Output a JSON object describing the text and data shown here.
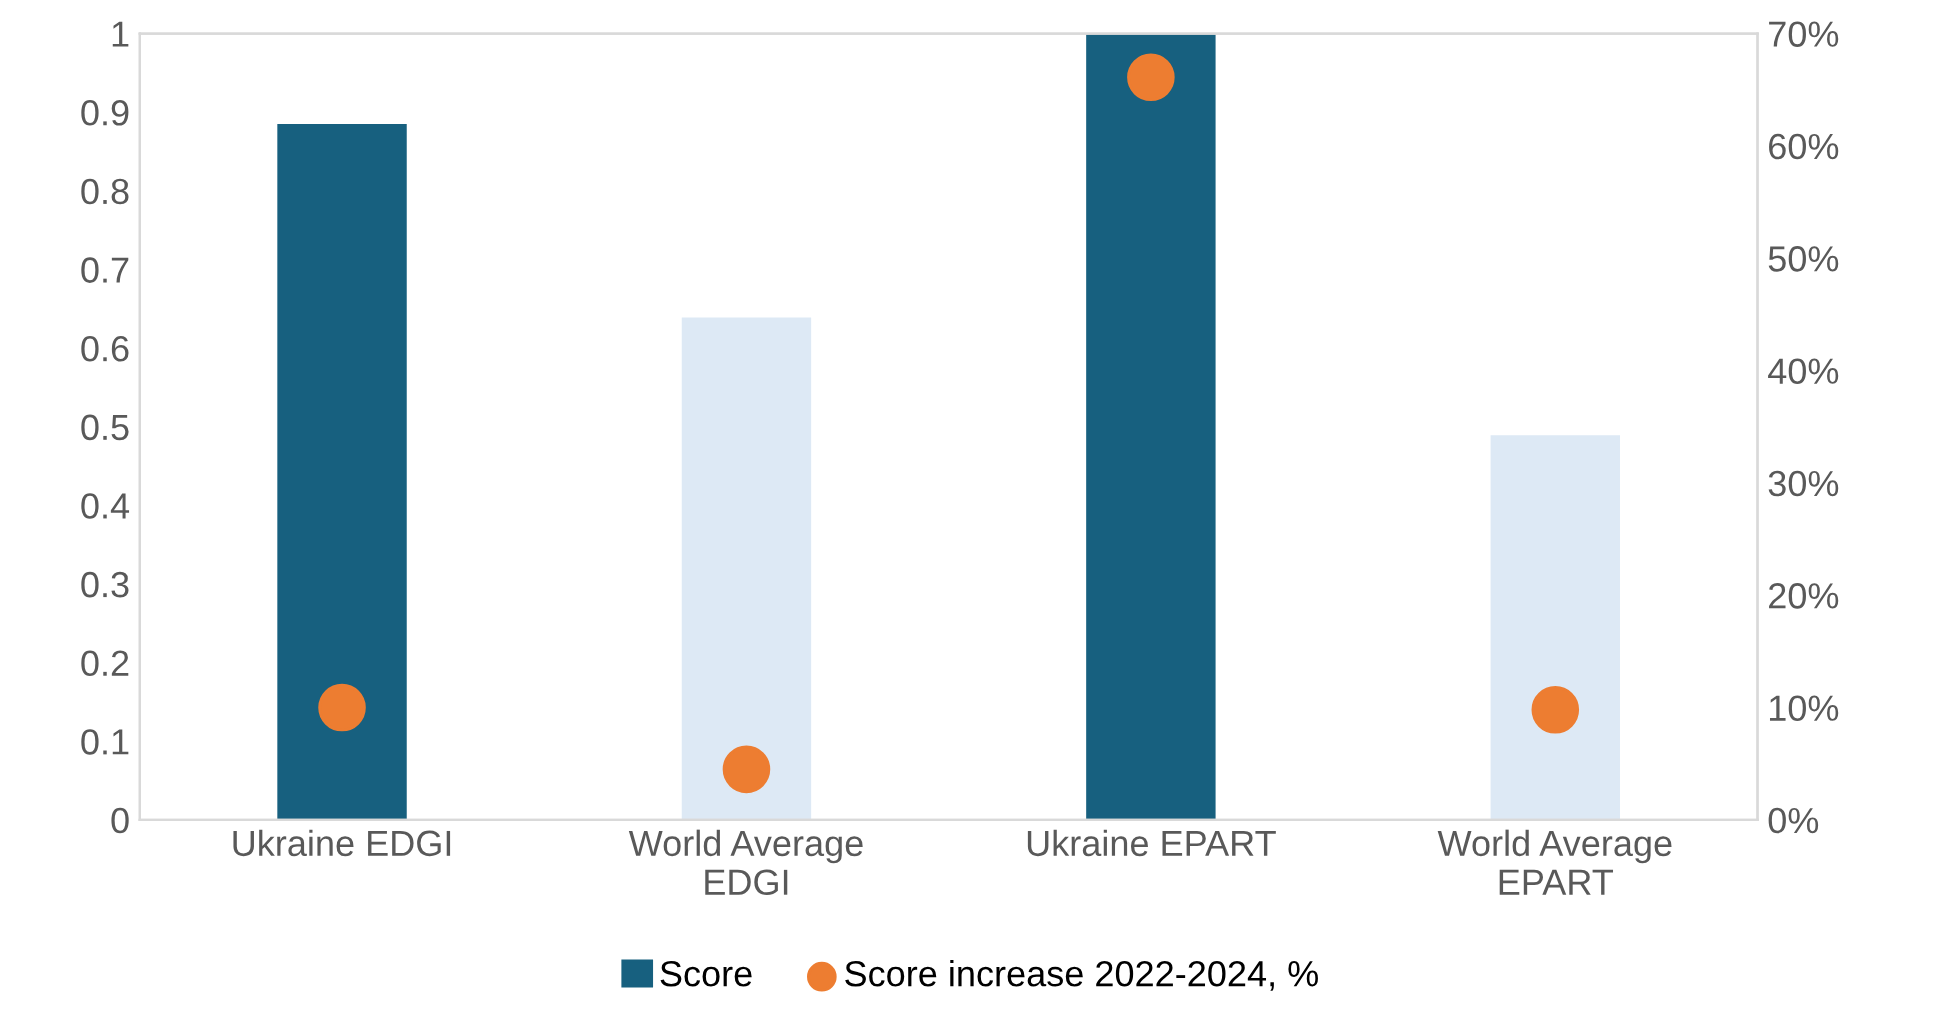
{
  "chart_data": {
    "type": "bar",
    "categories": [
      "Ukraine EDGI",
      "World Average\nEDGI",
      "Ukraine EPART",
      "World Average\nEPART"
    ],
    "series": [
      {
        "name": "Score",
        "color": "#17607f",
        "colors": [
          "#17607f",
          "#dde9f5",
          "#17607f",
          "#dde9f5"
        ],
        "values": [
          0.885,
          0.639,
          1.0,
          0.489
        ]
      },
      {
        "name": "Score increase 2022-2024, %",
        "type": "scatter",
        "axis": "y2",
        "color": "#ed7d31",
        "values": [
          10.0,
          4.5,
          66.1,
          9.8
        ]
      }
    ],
    "ylim": [
      0,
      1
    ],
    "yticks": [
      0,
      0.1,
      0.2,
      0.3,
      0.4,
      0.5,
      0.6,
      0.7,
      0.8,
      0.9,
      1
    ],
    "y2lim": [
      0,
      70
    ],
    "y2ticks": [
      {
        "value": 0,
        "label": "0%"
      },
      {
        "value": 10,
        "label": "10%"
      },
      {
        "value": 20,
        "label": "20%"
      },
      {
        "value": 30,
        "label": "30%"
      },
      {
        "value": 40,
        "label": "40%"
      },
      {
        "value": 50,
        "label": "50%"
      },
      {
        "value": 60,
        "label": "60%"
      },
      {
        "value": 70,
        "label": "70%"
      }
    ],
    "legend": "bottom",
    "grid": false,
    "marker": "circle"
  }
}
